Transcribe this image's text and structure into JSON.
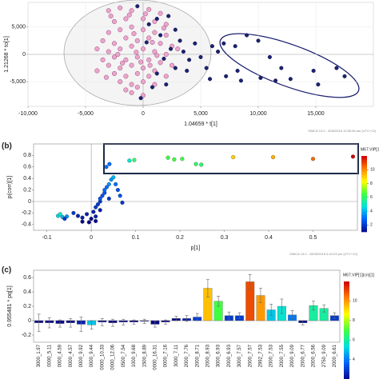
{
  "chart_data": [
    {
      "type": "scatter",
      "xlabel": "1.04659 * t[1]",
      "ylabel": "1.21268 * to[1]",
      "footer": "SIMCA 13.0 - 3/06/2018 12:56:36 am (UTC+12)",
      "xlim": [
        -10000,
        20000
      ],
      "ylim": [
        -9500,
        9500
      ],
      "grid": true,
      "xticks": [
        {
          "value": -10000,
          "label": "-10,000"
        },
        {
          "value": -5000,
          "label": "-5,000"
        },
        0,
        {
          "value": 5000,
          "label": "5,000"
        },
        {
          "value": 10000,
          "label": "10,000"
        },
        {
          "value": 15000,
          "label": "15,000"
        }
      ],
      "yticks": [
        {
          "value": -5000,
          "label": "-5,000"
        },
        0,
        {
          "value": 5000,
          "label": "5,000"
        }
      ],
      "series": [
        {
          "color": "#eaa6cc",
          "edgecolor": "#9c4b7a",
          "x": [
            -3000,
            -2000,
            -1000,
            500,
            1500,
            -2500,
            -1500,
            0,
            1000,
            2000,
            -3000,
            -2000,
            -1000,
            0,
            1000,
            2000,
            -3500,
            -2500,
            -1500,
            -500,
            500,
            1500,
            2500,
            -3000,
            -2000,
            -1000,
            0,
            1000,
            2000,
            -3500,
            -2500,
            -1500,
            -500,
            500,
            1500,
            -3000,
            -2000,
            -1000,
            0,
            1000,
            -2500,
            -1500,
            -500,
            500,
            -2000,
            -1000,
            0,
            1000,
            -1500,
            -500,
            -4000,
            -4000,
            2500,
            3000,
            -2800,
            -1200,
            200,
            -800,
            800,
            -1800,
            -200,
            600,
            -2200,
            1200,
            -600,
            -3200,
            1800,
            -1000,
            0,
            2000
          ],
          "y": [
            8000,
            8500,
            8000,
            8200,
            7500,
            6000,
            6500,
            6500,
            6000,
            5500,
            4000,
            4500,
            5000,
            4500,
            4000,
            3500,
            2500,
            2000,
            3000,
            2500,
            3000,
            2000,
            1500,
            500,
            1000,
            1500,
            1000,
            500,
            0,
            -1000,
            -500,
            -1000,
            -500,
            -1000,
            -1500,
            -2000,
            -2500,
            -2000,
            -2500,
            -3000,
            -3500,
            -4000,
            -3500,
            -4000,
            -5000,
            -5500,
            -5000,
            -5500,
            -6500,
            -6000,
            1000,
            -3000,
            -2000,
            1000,
            7000,
            7200,
            7400,
            3800,
            2200,
            -1600,
            -1400,
            -2000,
            0,
            -200,
            400,
            -4200,
            4800,
            -7000,
            -7500,
            -4000
          ]
        },
        {
          "color": "#1c2170",
          "edgecolor": "#10134a",
          "x": [
            -500,
            1200,
            2200,
            500,
            2800,
            1500,
            3200,
            2400,
            3500,
            1800,
            4000,
            2800,
            1200,
            3800,
            800,
            2000,
            4500,
            5000,
            5500,
            6000,
            6500,
            5800,
            7000,
            8000,
            9000,
            7200,
            8500,
            8200,
            10000,
            11000,
            12000,
            10200,
            11500,
            14800,
            16800,
            15200,
            17500,
            12800,
            -200,
            300
          ],
          "y": [
            8800,
            6500,
            7000,
            5500,
            4500,
            3500,
            2500,
            1000,
            500,
            -800,
            -1000,
            -2500,
            -3500,
            -3000,
            -6000,
            -5500,
            2000,
            -500,
            -2500,
            1500,
            500,
            -4500,
            2000,
            1500,
            3500,
            -4000,
            -4800,
            -3000,
            2500,
            -500,
            -2500,
            -4300,
            -4800,
            -3000,
            -2500,
            -5500,
            -4000,
            -4500,
            -8000,
            2200
          ]
        }
      ]
    },
    {
      "type": "colorscatter",
      "label": "(b)",
      "xlabel": "p[1]",
      "ylabel": "p(corr)[1]",
      "footer": "SIMCA 13.0 - 28/05/2018 4:42:03 pm (UTC+12)",
      "xlim": [
        -0.13,
        0.6
      ],
      "ylim": [
        -0.5,
        1.0
      ],
      "zero_lines": true,
      "xticks": [
        -0.1,
        0,
        0.1,
        0.2,
        0.3,
        0.4,
        0.5
      ],
      "yticks": [
        -0.4,
        -0.2,
        0,
        0.2,
        0.4,
        0.6,
        0.8
      ],
      "x": [
        -0.075,
        -0.065,
        -0.055,
        -0.06,
        -0.04,
        -0.03,
        -0.02,
        -0.01,
        0,
        0.005,
        0.01,
        0.015,
        0.02,
        0.02,
        0.025,
        0.03,
        0.03,
        0.035,
        0.04,
        0.045,
        0.05,
        0.01,
        -0.005,
        0.02,
        0.055,
        0.06,
        0.065,
        -0.02,
        0.01,
        0.04,
        -0.07,
        0.07,
        0.034,
        0.041,
        0.086,
        0.097,
        0.173,
        0.187,
        0.205,
        0.236,
        0.248,
        0.32,
        0.41,
        0.5,
        0.59
      ],
      "y": [
        -0.25,
        -0.27,
        -0.26,
        -0.3,
        -0.2,
        -0.25,
        -0.28,
        -0.22,
        -0.3,
        -0.18,
        -0.1,
        -0.05,
        0,
        0.05,
        0.1,
        0.15,
        0.2,
        0.25,
        0.3,
        0.38,
        0.42,
        -0.34,
        -0.36,
        -0.15,
        0.3,
        0.2,
        0.1,
        -0.35,
        -0.26,
        0.05,
        -0.22,
        -0.02,
        0.6,
        0.65,
        0.71,
        0.72,
        0.76,
        0.73,
        0.74,
        0.65,
        0.64,
        0.77,
        0.77,
        0.74,
        0.78
      ],
      "c": [
        4.5,
        4,
        3.5,
        2,
        2,
        1.5,
        1.5,
        1.5,
        1,
        1.5,
        2,
        2,
        2,
        2.5,
        2.5,
        2.5,
        3,
        3,
        3.5,
        3.5,
        4,
        1,
        1,
        1.5,
        3,
        2.5,
        2.5,
        1,
        1.5,
        2,
        5,
        2,
        3,
        3,
        5,
        6,
        6.5,
        6.5,
        6.5,
        6,
        6,
        9,
        9.5,
        10.5,
        12
      ],
      "colorbar": {
        "title": "M67.VIP[1](cn)[1]",
        "lim": [
          1,
          12
        ],
        "ticks": [
          2,
          4,
          6,
          8,
          10
        ]
      },
      "colormap": [
        "#08088a",
        "#0060ff",
        "#00e0e0",
        "#40ff40",
        "#ffff00",
        "#ff8000",
        "#d00000"
      ]
    },
    {
      "type": "bar",
      "label": "(c)",
      "ylabel": "0.955481 * pq[1]",
      "ylim": [
        -0.3,
        0.7
      ],
      "yticks": [
        -0.2,
        0,
        0.2,
        0.4,
        0.6
      ],
      "categories": [
        "3000_1.97",
        "0000_5.11",
        "0000_4.59",
        "0000_4.57",
        "0000_9.92",
        "0000_9.44",
        "0000_10.33",
        "0000_12.06",
        "0500_7.54",
        "1000_9.68",
        "1500_8.89",
        "0000_16.31",
        "0000_7.16",
        "3000_7.11",
        "2000_7.76",
        "2000_8.71",
        "2000_8.93",
        "3000_6.93",
        "2000_6.93",
        "3000_7.57",
        "2000_7.57",
        "2992_7.53",
        "2000_7.53",
        "2000_7.55",
        "2000_9.09",
        "2000_6.77",
        "2000_6.56",
        "2750_9.09",
        "2000_6.61"
      ],
      "values": [
        -0.03,
        -0.03,
        -0.04,
        -0.03,
        -0.05,
        -0.06,
        -0.02,
        -0.03,
        -0.02,
        -0.02,
        -0.01,
        -0.05,
        -0.02,
        0.03,
        0.03,
        0.05,
        0.45,
        0.27,
        0.07,
        0.07,
        0.54,
        0.35,
        0.15,
        0.2,
        0.08,
        -0.03,
        0.21,
        0.17,
        0.07
      ],
      "errors": [
        0.12,
        0.07,
        0.05,
        0.06,
        0.1,
        0.06,
        0.05,
        0.05,
        0.04,
        0.03,
        0.03,
        0.04,
        0.03,
        0.03,
        0.04,
        0.05,
        0.12,
        0.07,
        0.05,
        0.04,
        0.1,
        0.1,
        0.08,
        0.1,
        0.06,
        0.03,
        0.06,
        0.05,
        0.04
      ],
      "c": [
        2,
        2,
        2,
        2,
        2.5,
        5,
        2,
        2,
        2,
        2,
        2,
        2,
        1.5,
        2,
        2.5,
        3,
        9.5,
        7,
        3,
        3,
        11,
        10,
        5,
        5.5,
        4,
        2,
        6,
        6,
        3
      ],
      "colorbar": {
        "title": "M67.VIP[1](cn)[1]",
        "lim": [
          2,
          12
        ],
        "ticks": [
          4,
          6,
          8,
          10
        ]
      },
      "colormap": [
        "#08088a",
        "#0060ff",
        "#00e0e0",
        "#40ff40",
        "#ffff00",
        "#ff8000",
        "#d00000"
      ]
    }
  ]
}
